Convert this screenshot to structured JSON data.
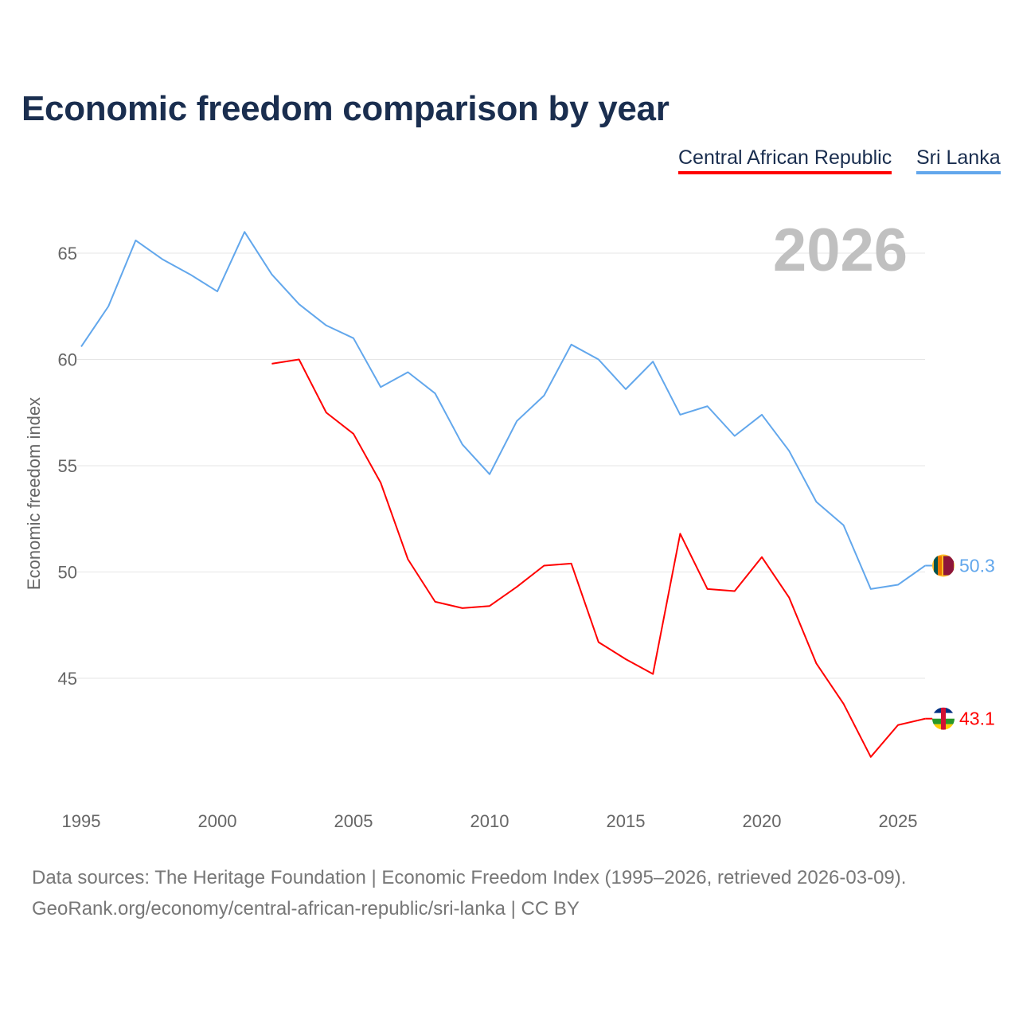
{
  "title": "Economic freedom comparison by year",
  "legend": [
    {
      "name": "Central African Republic",
      "color": "#ff0000"
    },
    {
      "name": "Sri Lanka",
      "color": "#62a7ec"
    }
  ],
  "year_watermark": "2026",
  "footer": {
    "line1": "Data sources: The Heritage Foundation | Economic Freedom Index (1995–2026, retrieved 2026-03-09).",
    "line2": "GeoRank.org/economy/central-african-republic/sri-lanka | CC BY"
  },
  "chart_data": {
    "type": "line",
    "title": "Economic freedom comparison by year",
    "xlabel": "",
    "ylabel": "Economic freedom index",
    "xlim": [
      1995,
      2026
    ],
    "ylim": [
      39.5,
      66.5
    ],
    "xticks": [
      1995,
      2000,
      2005,
      2010,
      2015,
      2020,
      2025
    ],
    "yticks": [
      45,
      50,
      55,
      60,
      65
    ],
    "grid": true,
    "legend_position": "top-right",
    "series": [
      {
        "name": "Central African Republic",
        "color": "#ff0000",
        "end_label": "43.1",
        "x": [
          2002,
          2003,
          2004,
          2005,
          2006,
          2007,
          2008,
          2009,
          2010,
          2011,
          2012,
          2013,
          2014,
          2015,
          2016,
          2017,
          2018,
          2019,
          2020,
          2021,
          2022,
          2023,
          2024,
          2025,
          2026
        ],
        "values": [
          59.8,
          60.0,
          57.5,
          56.5,
          54.2,
          50.6,
          48.6,
          48.3,
          48.4,
          49.3,
          50.3,
          50.4,
          46.7,
          45.9,
          45.2,
          51.8,
          49.2,
          49.1,
          50.7,
          48.8,
          45.7,
          43.8,
          41.3,
          42.8,
          43.1
        ]
      },
      {
        "name": "Sri Lanka",
        "color": "#62a7ec",
        "end_label": "50.3",
        "x": [
          1995,
          1996,
          1997,
          1998,
          1999,
          2000,
          2001,
          2002,
          2003,
          2004,
          2005,
          2006,
          2007,
          2008,
          2009,
          2010,
          2011,
          2012,
          2013,
          2014,
          2015,
          2016,
          2017,
          2018,
          2019,
          2020,
          2021,
          2022,
          2023,
          2024,
          2025,
          2026
        ],
        "values": [
          60.6,
          62.5,
          65.6,
          64.7,
          64.0,
          63.2,
          66.0,
          64.0,
          62.6,
          61.6,
          61.0,
          58.7,
          59.4,
          58.4,
          56.0,
          54.6,
          57.1,
          58.3,
          60.7,
          60.0,
          58.6,
          59.9,
          57.4,
          57.8,
          56.4,
          57.4,
          55.7,
          53.3,
          52.2,
          49.2,
          49.4,
          50.3
        ]
      }
    ]
  }
}
